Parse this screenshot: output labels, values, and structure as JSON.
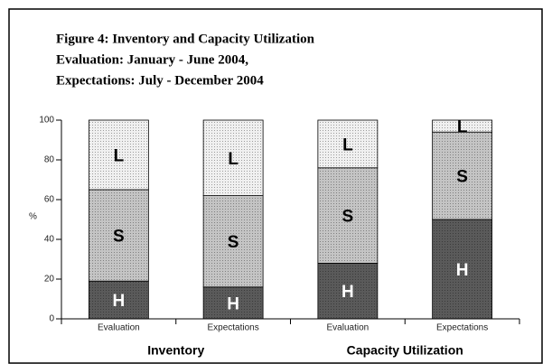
{
  "chart_data": {
    "type": "stacked_bar",
    "title_lines": [
      "Figure 4: Inventory and Capacity Utilization",
      "Evaluation: January - June 2004,",
      "Expectations: July - December 2004"
    ],
    "y_label": "%",
    "categories": [
      "Evaluation",
      "Expectations",
      "Evaluation",
      "Expectations"
    ],
    "group_labels": [
      "Inventory",
      "Capacity Utilization"
    ],
    "series": [
      {
        "name": "H",
        "color": "#5a5a5a",
        "label_color": "#ffffff",
        "values": [
          19,
          16,
          28,
          50
        ]
      },
      {
        "name": "S",
        "color": "#c4c4c4",
        "label_color": "#000000",
        "values": [
          46,
          46,
          48,
          44
        ]
      },
      {
        "name": "L",
        "color": "#f0f0f0",
        "label_color": "#000000",
        "values": [
          35,
          38,
          24,
          6
        ]
      }
    ],
    "ylim": [
      0,
      100
    ],
    "yticks": [
      0,
      20,
      40,
      60,
      80,
      100
    ]
  }
}
